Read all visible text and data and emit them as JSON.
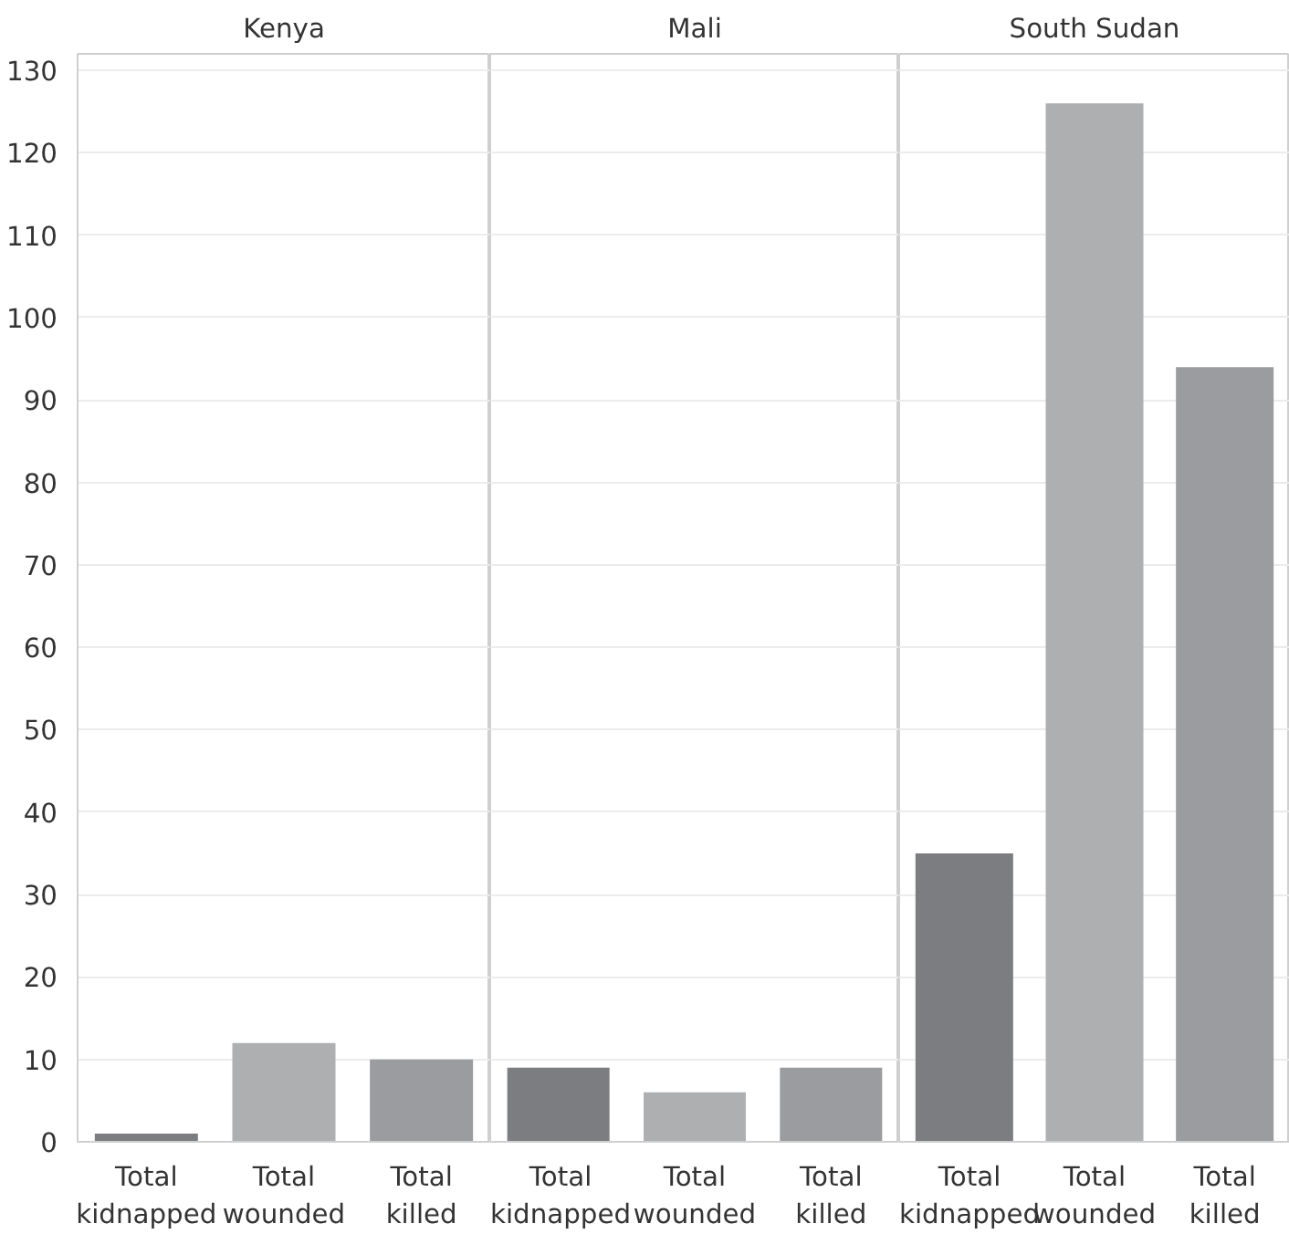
{
  "chart_data": [
    {
      "type": "bar",
      "title": "Kenya",
      "categories": [
        "Total kidnapped",
        "Total wounded",
        "Total killed"
      ],
      "values": [
        1,
        12,
        10
      ],
      "colors": [
        "#7c7d80",
        "#aeafb1",
        "#9b9c9f"
      ],
      "ylim": [
        0,
        132
      ],
      "yticks": [
        0,
        10,
        20,
        30,
        40,
        50,
        60,
        70,
        80,
        90,
        100,
        110,
        120,
        130
      ],
      "grid": "y"
    },
    {
      "type": "bar",
      "title": "Mali",
      "categories": [
        "Total kidnapped",
        "Total wounded",
        "Total killed"
      ],
      "values": [
        9,
        6,
        9
      ],
      "colors": [
        "#7c7d80",
        "#aeafb1",
        "#9b9c9f"
      ],
      "ylim": [
        0,
        132
      ],
      "yticks": [
        0,
        10,
        20,
        30,
        40,
        50,
        60,
        70,
        80,
        90,
        100,
        110,
        120,
        130
      ],
      "grid": "y",
      "tick_labels": "x"
    },
    {
      "type": "bar",
      "title": "South Sudan",
      "categories": [
        "Total kidnapped",
        "Total wounded",
        "Total killed"
      ],
      "values": [
        35,
        126,
        94
      ],
      "colors": [
        "#7c7d80",
        "#aeafb1",
        "#9b9c9f"
      ],
      "ylim": [
        0,
        132
      ],
      "yticks": [
        0,
        10,
        20,
        30,
        40,
        50,
        60,
        70,
        80,
        90,
        100,
        110,
        120,
        130
      ],
      "grid": "y",
      "tick_labels": "x"
    }
  ]
}
